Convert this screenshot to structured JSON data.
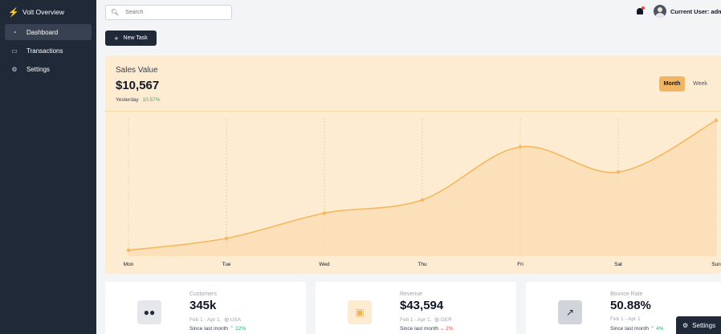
{
  "sidebar": {
    "brand": "Volt Overview",
    "items": [
      {
        "label": "Dashboard",
        "icon": "chart-pie-icon",
        "active": true
      },
      {
        "label": "Transactions",
        "icon": "credit-card-icon",
        "active": false
      },
      {
        "label": "Settings",
        "icon": "gear-icon",
        "active": false
      }
    ]
  },
  "topbar": {
    "search_placeholder": "Search",
    "user_label": "Current User: admin"
  },
  "actions": {
    "new_task": "New Task"
  },
  "sales": {
    "title": "Sales Value",
    "value": "$10,567",
    "yesterday_label": "Yesterday",
    "yesterday_change": "10.57%",
    "toggle": [
      "Month",
      "Week"
    ],
    "selected": "Month"
  },
  "chart_data": {
    "type": "area",
    "categories": [
      "Mon",
      "Tue",
      "Wed",
      "Thu",
      "Fri",
      "Sat",
      "Sun"
    ],
    "values": [
      0.02,
      0.11,
      0.3,
      0.4,
      0.8,
      0.61,
      1.0
    ],
    "color": "#f5b75f",
    "fill": "#fbdcb0",
    "grid": true
  },
  "stats": [
    {
      "label": "Customers",
      "value": "345k",
      "period": "Feb 1 - Apr 1,",
      "geo": "USA",
      "since": "Since last month",
      "change": "22%",
      "direction": "up",
      "icon": "users-icon",
      "accent": "#9ca3af"
    },
    {
      "label": "Revenue",
      "value": "$43,594",
      "period": "Feb 1 - Apr 1,",
      "geo": "GER",
      "since": "Since last month",
      "change": "2%",
      "direction": "down",
      "icon": "cash-icon",
      "accent": "#f0b24f"
    },
    {
      "label": "Bounce Rate",
      "value": "50.88%",
      "period": "Feb 1 - Apr 1",
      "geo": "",
      "since": "Since last month",
      "change": "4%",
      "direction": "up",
      "icon": "chart-icon",
      "accent": "#4b5563"
    }
  ],
  "fab": {
    "label": "Settings"
  }
}
